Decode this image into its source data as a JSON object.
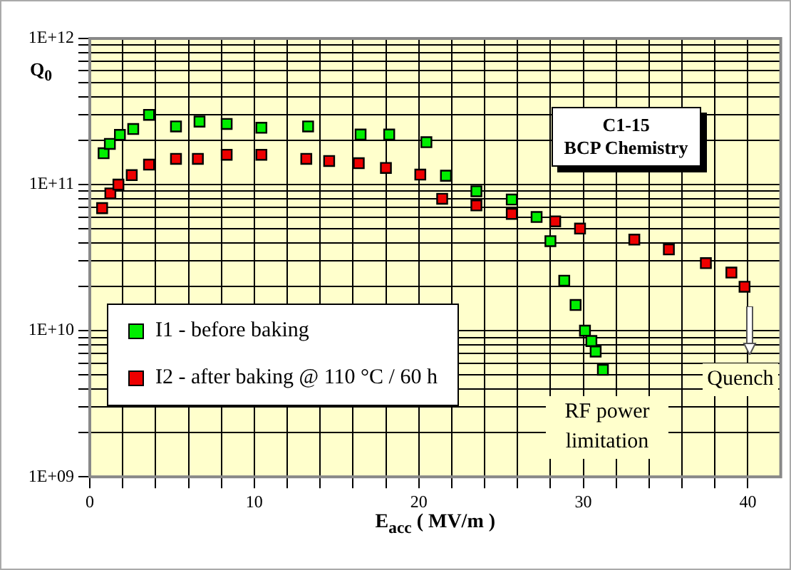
{
  "chart_data": {
    "type": "scatter",
    "xlabel": "E$_{acc}$ ( MV/m )",
    "ylabel": "Q$_{0}$",
    "log": "y",
    "grid": true,
    "marker": "square",
    "legend": "bottom left",
    "xlim": [
      0,
      42
    ],
    "ylim": [
      1000000000.0,
      1000000000000.0
    ],
    "xticks": [
      0,
      {
        "value": 2,
        "label": null
      },
      {
        "value": 4,
        "label": null
      },
      {
        "value": 6,
        "label": null
      },
      {
        "value": 8,
        "label": null
      },
      10,
      {
        "value": 12,
        "label": null
      },
      {
        "value": 14,
        "label": null
      },
      {
        "value": 16,
        "label": null
      },
      {
        "value": 18,
        "label": null
      },
      20,
      {
        "value": 22,
        "label": null
      },
      {
        "value": 24,
        "label": null
      },
      {
        "value": 26,
        "label": null
      },
      {
        "value": 28,
        "label": null
      },
      30,
      {
        "value": 32,
        "label": null
      },
      {
        "value": 34,
        "label": null
      },
      {
        "value": 36,
        "label": null
      },
      {
        "value": 38,
        "label": null
      },
      40
    ],
    "yticks": [
      {
        "value": 1000000000.0,
        "label": "1E+09"
      },
      {
        "value": 2000000000.0,
        "label": null
      },
      {
        "value": 3000000000.0,
        "label": null
      },
      {
        "value": 4000000000.0,
        "label": null
      },
      {
        "value": 5000000000.0,
        "label": null
      },
      {
        "value": 6000000000.0,
        "label": null
      },
      {
        "value": 7000000000.0,
        "label": null
      },
      {
        "value": 8000000000.0,
        "label": null
      },
      {
        "value": 9000000000.0,
        "label": null
      },
      {
        "value": 10000000000.0,
        "label": "1E+10"
      },
      {
        "value": 20000000000.0,
        "label": null
      },
      {
        "value": 30000000000.0,
        "label": null
      },
      {
        "value": 40000000000.0,
        "label": null
      },
      {
        "value": 50000000000.0,
        "label": null
      },
      {
        "value": 60000000000.0,
        "label": null
      },
      {
        "value": 70000000000.0,
        "label": null
      },
      {
        "value": 80000000000.0,
        "label": null
      },
      {
        "value": 90000000000.0,
        "label": null
      },
      {
        "value": 100000000000.0,
        "label": "1E+11"
      },
      {
        "value": 200000000000.0,
        "label": null
      },
      {
        "value": 300000000000.0,
        "label": null
      },
      {
        "value": 400000000000.0,
        "label": null
      },
      {
        "value": 500000000000.0,
        "label": null
      },
      {
        "value": 600000000000.0,
        "label": null
      },
      {
        "value": 700000000000.0,
        "label": null
      },
      {
        "value": 800000000000.0,
        "label": null
      },
      {
        "value": 900000000000.0,
        "label": null
      },
      {
        "value": 1000000000000.0,
        "label": "1E+12"
      }
    ],
    "series": [
      {
        "name": "I1 - before baking",
        "color": "#00ee00",
        "x": [
          0.84,
          1.22,
          1.83,
          2.64,
          3.6,
          5.24,
          6.67,
          8.32,
          10.43,
          13.27,
          16.46,
          18.2,
          20.46,
          21.65,
          23.5,
          25.65,
          27.16,
          28.0,
          28.84,
          29.53,
          30.1,
          30.49,
          30.75,
          31.19
        ],
        "values": [
          164000000000.0,
          190000000000.0,
          219000000000.0,
          240000000000.0,
          300000000000.0,
          250000000000.0,
          270000000000.0,
          260000000000.0,
          245000000000.0,
          250000000000.0,
          220000000000.0,
          220000000000.0,
          195000000000.0,
          115000000000.0,
          90000000000.0,
          79000000000.0,
          60000000000.0,
          41000000000.0,
          22000000000.0,
          15000000000.0,
          10000000000.0,
          8500000000.0,
          7200000000.0,
          5400000000.0
        ]
      },
      {
        "name": "I2 - after baking @ 110 °C / 60 h",
        "color": "#ee0000",
        "x": [
          0.75,
          1.25,
          1.74,
          2.55,
          3.6,
          5.24,
          6.57,
          8.32,
          10.43,
          13.16,
          14.55,
          16.35,
          18.0,
          20.09,
          21.42,
          23.5,
          25.65,
          28.29,
          29.8,
          33.1,
          35.2,
          37.45,
          39.0,
          39.8
        ],
        "values": [
          69000000000.0,
          87000000000.0,
          100000000000.0,
          116000000000.0,
          137000000000.0,
          150000000000.0,
          150000000000.0,
          160000000000.0,
          160000000000.0,
          150000000000.0,
          145000000000.0,
          140000000000.0,
          130000000000.0,
          117000000000.0,
          80000000000.0,
          72000000000.0,
          63000000000.0,
          56000000000.0,
          50000000000.0,
          42000000000.0,
          36000000000.0,
          29000000000.0,
          25000000000.0,
          20000000000.0
        ]
      }
    ],
    "annotations": [
      "C1-15\nBCP Chemistry",
      {
        "text": "RF power limitation",
        "x": 31.19,
        "y": 5400000000.0
      },
      "Quench"
    ]
  }
}
